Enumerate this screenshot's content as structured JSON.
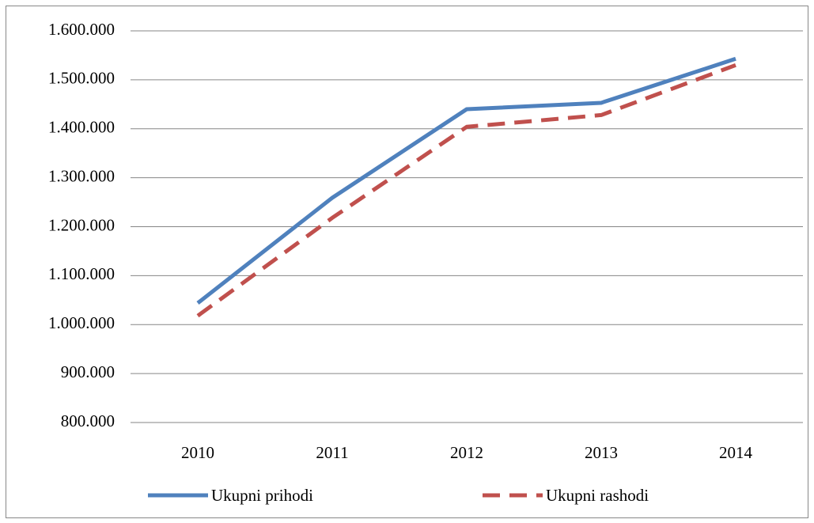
{
  "chart_data": {
    "type": "line",
    "categories": [
      "2010",
      "2011",
      "2012",
      "2013",
      "2014"
    ],
    "series": [
      {
        "name": "Ukupni prihodi",
        "color": "#4f81bd",
        "dash": false,
        "values": [
          1044000,
          1259000,
          1440000,
          1453000,
          1543000
        ]
      },
      {
        "name": "Ukupni rashodi",
        "color": "#c0504d",
        "dash": true,
        "values": [
          1018000,
          1218000,
          1404000,
          1428000,
          1530000
        ]
      }
    ],
    "ylim": [
      800000,
      1600000
    ],
    "yticks": [
      {
        "value": 800000,
        "label": "800.000"
      },
      {
        "value": 900000,
        "label": "900.000"
      },
      {
        "value": 1000000,
        "label": "1.000.000"
      },
      {
        "value": 1100000,
        "label": "1.100.000"
      },
      {
        "value": 1200000,
        "label": "1.200.000"
      },
      {
        "value": 1300000,
        "label": "1.300.000"
      },
      {
        "value": 1400000,
        "label": "1.400.000"
      },
      {
        "value": 1500000,
        "label": "1.500.000"
      },
      {
        "value": 1600000,
        "label": "1.600.000"
      }
    ],
    "grid": true,
    "legend": "bottom"
  }
}
